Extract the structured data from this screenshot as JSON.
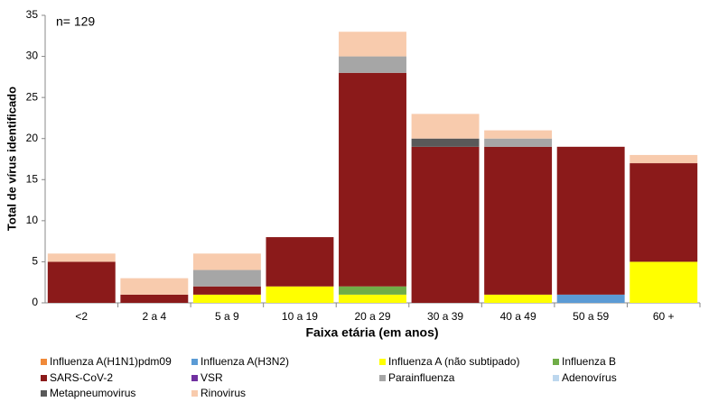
{
  "chart_data": {
    "type": "stacked_bar",
    "annotation": "n= 129",
    "x_label": "Faixa etária (em anos)",
    "y_label": "Total de vírus identificado",
    "categories": [
      "<2",
      "2 a 4",
      "5 a 9",
      "10 a 19",
      "20 a 29",
      "30 a 39",
      "40 a 49",
      "50 a 59",
      "60 +"
    ],
    "ylim": [
      0,
      35
    ],
    "yticks": [
      0,
      5,
      10,
      15,
      20,
      25,
      30,
      35
    ],
    "grid": false,
    "series": [
      {
        "name": "Influenza A(H1N1)pdm09",
        "color": "#f08a3a",
        "values": [
          0,
          0,
          0,
          0,
          0,
          0,
          0,
          0,
          0
        ]
      },
      {
        "name": "Influenza A(H3N2)",
        "color": "#5b9bd5",
        "values": [
          0,
          0,
          0,
          0,
          0,
          0,
          0,
          1,
          0
        ]
      },
      {
        "name": "Influenza A (não subtipado)",
        "color": "#ffff00",
        "values": [
          0,
          0,
          1,
          2,
          1,
          0,
          1,
          0,
          5
        ]
      },
      {
        "name": "Influenza B",
        "color": "#70ad47",
        "values": [
          0,
          0,
          0,
          0,
          1,
          0,
          0,
          0,
          0
        ]
      },
      {
        "name": "SARS-CoV-2",
        "color": "#8b1a1a",
        "values": [
          5,
          1,
          1,
          6,
          26,
          19,
          18,
          18,
          12
        ]
      },
      {
        "name": "VSR",
        "color": "#7030a0",
        "values": [
          0,
          0,
          0,
          0,
          0,
          0,
          0,
          0,
          0
        ]
      },
      {
        "name": "Parainfluenza",
        "color": "#a6a6a6",
        "values": [
          0,
          0,
          2,
          0,
          2,
          0,
          1,
          0,
          0
        ]
      },
      {
        "name": "Adenovírus",
        "color": "#bdd7ee",
        "values": [
          0,
          0,
          0,
          0,
          0,
          0,
          0,
          0,
          0
        ]
      },
      {
        "name": "Metapneumovirus",
        "color": "#595959",
        "values": [
          0,
          0,
          0,
          0,
          0,
          1,
          0,
          0,
          0
        ]
      },
      {
        "name": "Rinovirus",
        "color": "#f8cbad",
        "values": [
          1,
          2,
          2,
          0,
          3,
          3,
          1,
          0,
          1
        ]
      }
    ]
  }
}
